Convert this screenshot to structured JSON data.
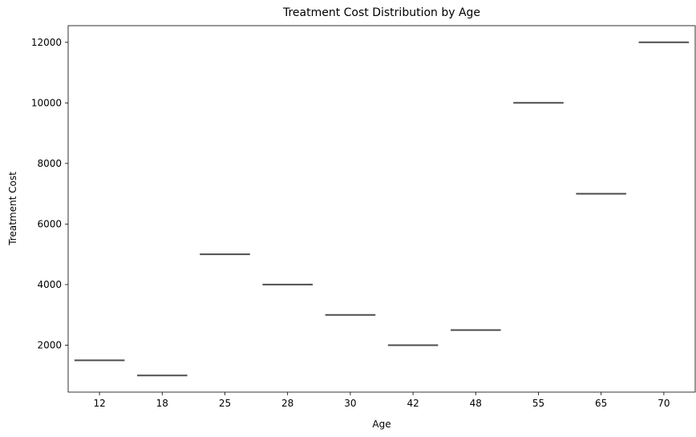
{
  "chart_data": {
    "type": "box",
    "title": "Treatment Cost Distribution by Age",
    "xlabel": "Age",
    "ylabel": "Treatment Cost",
    "categories": [
      "12",
      "18",
      "25",
      "28",
      "30",
      "42",
      "48",
      "55",
      "65",
      "70"
    ],
    "values": [
      1500,
      1000,
      5000,
      4000,
      3000,
      2000,
      2500,
      10000,
      7000,
      12000
    ],
    "ylim": [
      450,
      12550
    ],
    "yticks": [
      2000,
      4000,
      6000,
      8000,
      10000,
      12000
    ],
    "grid": false,
    "legend": "none",
    "line_color": "#4d4d4d"
  }
}
